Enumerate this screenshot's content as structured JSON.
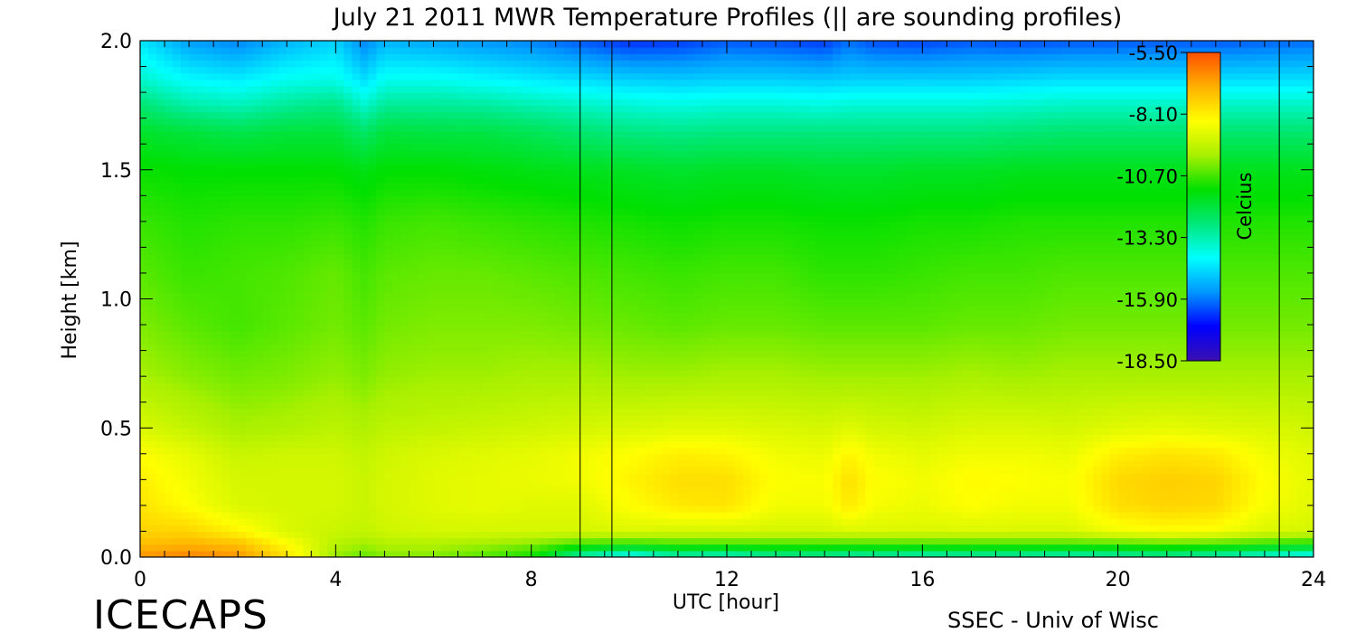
{
  "chart_data": {
    "type": "heatmap",
    "title": "July 21 2011 MWR Temperature Profiles (|| are sounding profiles)",
    "xlabel": "UTC [hour]",
    "ylabel": "Height [km]",
    "x_ticks": [
      "0",
      "4",
      "8",
      "12",
      "16",
      "20",
      "24"
    ],
    "y_ticks": [
      "0.0",
      "0.5",
      "1.0",
      "1.5",
      "2.0"
    ],
    "xlim": [
      0,
      24
    ],
    "ylim": [
      0,
      2.0
    ],
    "x_minor_step": 0.5,
    "y_minor_step": 0.1,
    "colorbar": {
      "label": "Celcius",
      "ticks": [
        "-5.50",
        "-8.10",
        "-10.70",
        "-13.30",
        "-15.90",
        "-18.50"
      ],
      "range": [
        -18.5,
        -5.5
      ],
      "colors": [
        "#3a0fb0",
        "#0000ff",
        "#0096ff",
        "#00ffff",
        "#00e87a",
        "#00e000",
        "#a8f000",
        "#ffff00",
        "#ffb000",
        "#ff5000"
      ]
    },
    "sounding_profiles_utc": [
      9.0,
      9.65,
      23.3
    ],
    "heights_km": [
      0.0,
      0.05,
      0.1,
      0.2,
      0.3,
      0.4,
      0.5,
      0.7,
      0.9,
      1.1,
      1.3,
      1.5,
      1.65,
      1.75,
      1.85,
      2.0
    ],
    "times_utc": [
      0,
      1,
      2,
      3,
      4,
      4.6,
      5,
      6,
      7,
      8,
      9,
      10,
      11,
      12,
      13,
      14,
      14.5,
      15,
      16,
      17,
      18,
      19,
      20,
      21,
      22,
      23,
      24
    ],
    "temperature_c": [
      [
        -6.5,
        -6.2,
        -6.5,
        -7.8,
        -10.0,
        -10.5,
        -10.2,
        -10.2,
        -10.6,
        -11.2,
        -13.5,
        -14.5,
        -13.5,
        -13.8,
        -13.2,
        -13.2,
        -13.5,
        -13.4,
        -13.6,
        -13.4,
        -13.4,
        -13.6,
        -13.4,
        -13.2,
        -13.5,
        -14.0,
        -14.5
      ],
      [
        -7.2,
        -7.0,
        -7.2,
        -8.3,
        -9.6,
        -9.9,
        -9.7,
        -9.7,
        -9.9,
        -10.2,
        -10.8,
        -11.0,
        -10.8,
        -10.8,
        -10.8,
        -10.8,
        -10.8,
        -10.8,
        -10.8,
        -10.8,
        -10.8,
        -10.8,
        -10.8,
        -10.7,
        -10.8,
        -11.0,
        -11.2
      ],
      [
        -7.6,
        -7.6,
        -8.2,
        -9.0,
        -9.3,
        -9.4,
        -9.2,
        -9.1,
        -9.1,
        -9.1,
        -9.1,
        -9.0,
        -9.1,
        -9.1,
        -9.1,
        -9.1,
        -9.0,
        -9.0,
        -9.0,
        -9.0,
        -9.0,
        -9.0,
        -8.6,
        -8.4,
        -8.5,
        -9.0,
        -9.1
      ],
      [
        -7.9,
        -8.4,
        -9.0,
        -9.1,
        -9.1,
        -9.3,
        -9.1,
        -8.9,
        -8.8,
        -8.9,
        -8.9,
        -8.4,
        -8.0,
        -7.9,
        -8.6,
        -8.6,
        -8.0,
        -8.5,
        -8.7,
        -8.4,
        -8.6,
        -8.6,
        -7.8,
        -7.6,
        -7.7,
        -8.5,
        -8.9
      ],
      [
        -8.1,
        -8.6,
        -9.1,
        -9.1,
        -9.1,
        -9.3,
        -9.1,
        -8.9,
        -8.8,
        -8.7,
        -8.6,
        -8.2,
        -7.8,
        -7.8,
        -8.4,
        -8.5,
        -7.8,
        -8.4,
        -8.6,
        -8.3,
        -8.4,
        -8.5,
        -7.7,
        -7.5,
        -7.6,
        -8.4,
        -8.8
      ],
      [
        -8.4,
        -8.8,
        -9.3,
        -9.2,
        -9.2,
        -9.4,
        -9.2,
        -9.0,
        -8.9,
        -8.8,
        -8.6,
        -8.4,
        -8.1,
        -8.2,
        -8.6,
        -8.7,
        -8.2,
        -8.6,
        -8.8,
        -8.6,
        -8.6,
        -8.7,
        -8.1,
        -7.9,
        -8.0,
        -8.6,
        -8.9
      ],
      [
        -9.0,
        -9.4,
        -9.8,
        -9.7,
        -9.5,
        -9.7,
        -9.5,
        -9.4,
        -9.3,
        -9.2,
        -9.1,
        -9.0,
        -8.9,
        -8.9,
        -9.0,
        -9.1,
        -8.9,
        -9.1,
        -9.2,
        -9.0,
        -9.0,
        -9.1,
        -8.9,
        -8.8,
        -8.9,
        -9.0,
        -9.2
      ],
      [
        -9.8,
        -10.1,
        -10.3,
        -10.2,
        -10.0,
        -10.2,
        -10.0,
        -9.9,
        -9.9,
        -9.8,
        -9.8,
        -9.9,
        -9.9,
        -9.8,
        -9.8,
        -9.9,
        -9.9,
        -9.9,
        -9.9,
        -9.8,
        -9.9,
        -9.8,
        -9.8,
        -9.8,
        -9.8,
        -9.8,
        -9.8
      ],
      [
        -10.2,
        -10.5,
        -10.7,
        -10.5,
        -10.3,
        -10.5,
        -10.3,
        -10.2,
        -10.2,
        -10.2,
        -10.3,
        -10.4,
        -10.5,
        -10.4,
        -10.4,
        -10.5,
        -10.5,
        -10.5,
        -10.5,
        -10.4,
        -10.4,
        -10.3,
        -10.3,
        -10.3,
        -10.3,
        -10.3,
        -10.3
      ],
      [
        -10.5,
        -10.8,
        -10.7,
        -10.6,
        -10.4,
        -10.7,
        -10.5,
        -10.4,
        -10.4,
        -10.5,
        -10.6,
        -10.7,
        -10.8,
        -10.7,
        -10.7,
        -10.9,
        -10.9,
        -10.9,
        -10.8,
        -10.7,
        -10.7,
        -10.6,
        -10.6,
        -10.6,
        -10.6,
        -10.6,
        -10.6
      ],
      [
        -10.8,
        -11.0,
        -10.9,
        -10.9,
        -10.8,
        -11.0,
        -10.8,
        -10.7,
        -10.8,
        -10.9,
        -11.0,
        -11.1,
        -11.2,
        -11.1,
        -11.1,
        -11.2,
        -11.2,
        -11.2,
        -11.1,
        -11.1,
        -11.0,
        -11.0,
        -11.0,
        -11.0,
        -11.0,
        -11.0,
        -11.0
      ],
      [
        -11.2,
        -11.3,
        -11.3,
        -11.3,
        -11.3,
        -11.5,
        -11.3,
        -11.3,
        -11.4,
        -11.5,
        -11.6,
        -11.7,
        -11.8,
        -11.7,
        -11.7,
        -11.8,
        -11.8,
        -11.8,
        -11.7,
        -11.7,
        -11.6,
        -11.6,
        -11.6,
        -11.6,
        -11.6,
        -11.6,
        -11.6
      ],
      [
        -11.8,
        -12.0,
        -12.2,
        -12.0,
        -12.0,
        -12.5,
        -12.0,
        -12.1,
        -12.1,
        -12.3,
        -12.6,
        -12.8,
        -12.9,
        -12.8,
        -12.8,
        -12.8,
        -12.8,
        -12.8,
        -12.8,
        -12.8,
        -12.7,
        -12.6,
        -12.6,
        -12.6,
        -12.6,
        -12.6,
        -12.6
      ],
      [
        -12.6,
        -13.2,
        -13.4,
        -13.0,
        -12.8,
        -13.6,
        -13.0,
        -13.0,
        -13.1,
        -13.3,
        -13.5,
        -13.7,
        -13.8,
        -13.7,
        -13.7,
        -13.8,
        -13.7,
        -13.7,
        -13.7,
        -13.7,
        -13.6,
        -13.5,
        -13.5,
        -13.5,
        -13.5,
        -13.5,
        -13.5
      ],
      [
        -13.6,
        -14.2,
        -14.4,
        -14.0,
        -13.9,
        -14.6,
        -14.0,
        -14.0,
        -14.2,
        -14.4,
        -14.6,
        -14.8,
        -14.9,
        -14.8,
        -14.8,
        -14.9,
        -14.8,
        -14.8,
        -14.8,
        -14.8,
        -14.7,
        -14.6,
        -14.6,
        -14.6,
        -14.6,
        -14.6,
        -14.6
      ],
      [
        -14.5,
        -15.5,
        -15.8,
        -15.2,
        -14.8,
        -15.8,
        -15.2,
        -15.4,
        -15.6,
        -15.8,
        -16.2,
        -16.6,
        -16.5,
        -16.2,
        -16.3,
        -16.5,
        -16.0,
        -16.3,
        -16.4,
        -16.2,
        -16.3,
        -16.2,
        -16.2,
        -16.2,
        -16.2,
        -16.1,
        -16.0
      ]
    ]
  },
  "footer": {
    "brand": "ICECAPS",
    "credit": "SSEC - Univ of Wisc"
  }
}
